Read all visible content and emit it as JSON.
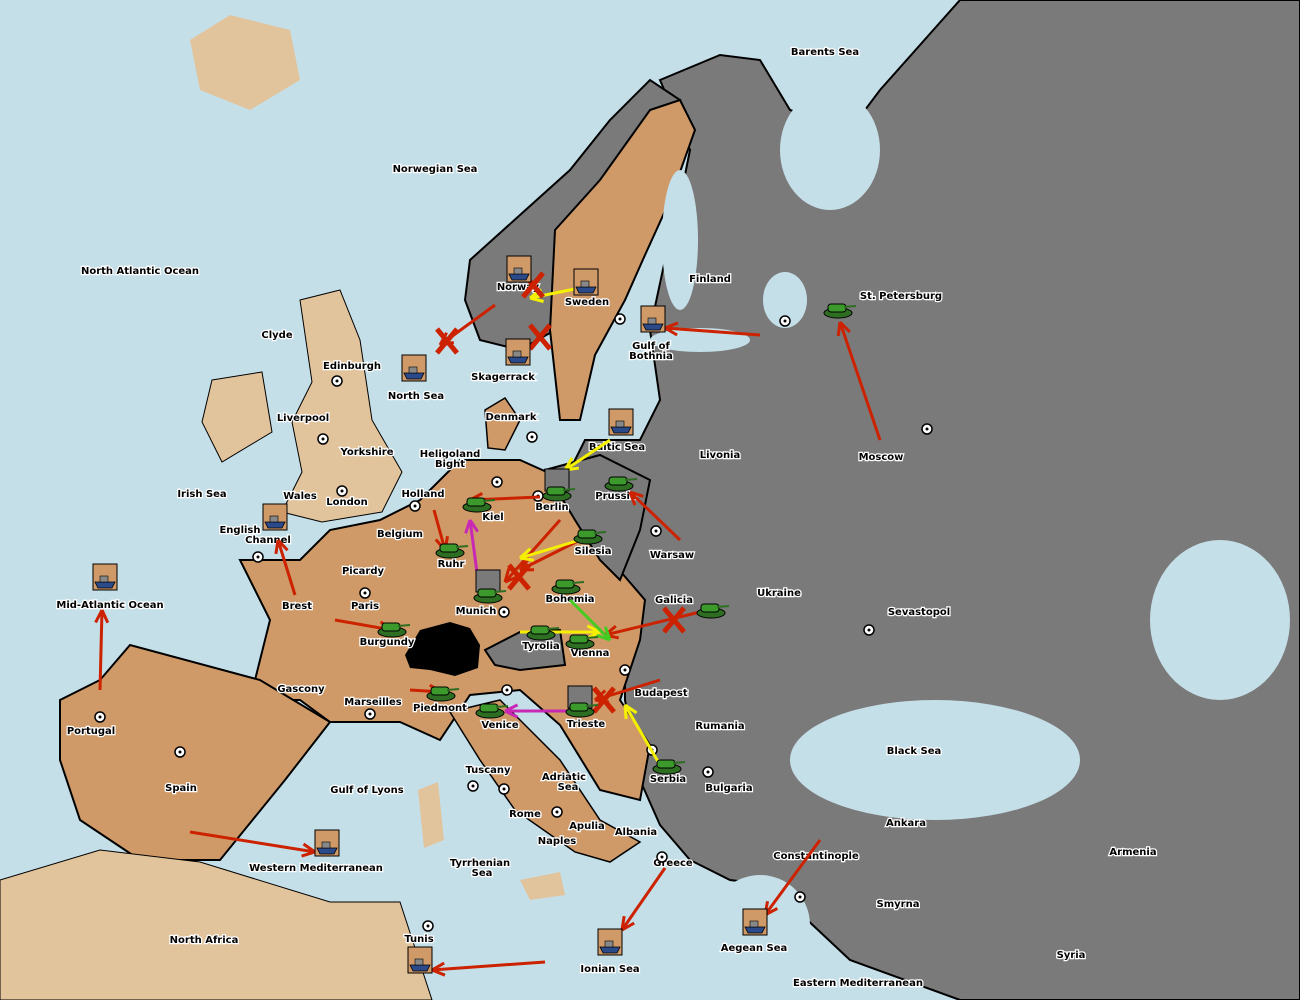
{
  "colors": {
    "sea": "#c5dfe9",
    "neutral_land": "#e2c49c",
    "player_land": "#cf9a68",
    "other_land": "#7a7a7a",
    "impassable": "#000000",
    "army": "#3c9a2c",
    "move_order": "#cc2200",
    "support_order": "#f5f000",
    "convoy_order": "#c828b4",
    "hold_support": "#44cc22"
  },
  "provinces": [
    "Barents Sea",
    "Norwegian Sea",
    "North Atlantic Ocean",
    "Clyde",
    "Edinburgh",
    "Liverpool",
    "Yorkshire",
    "Irish Sea",
    "Wales",
    "London",
    "English",
    "Channel",
    "Mid-Atlantic Ocean",
    "Brest",
    "Picardy",
    "Paris",
    "Belgium",
    "Holland",
    "Heligoland",
    "Bight",
    "Kiel",
    "Ruhr",
    "Berlin",
    "Prussia",
    "Silesia",
    "Warsaw",
    "Munich",
    "Bohemia",
    "Galicia",
    "Tyrolia",
    "Vienna",
    "Budapest",
    "Burgundy",
    "Gascony",
    "Marseilles",
    "Piedmont",
    "Venice",
    "Trieste",
    "Portugal",
    "Spain",
    "Gulf of Lyons",
    "Tuscany",
    "Adriatic",
    "Sea",
    "Rome",
    "Apulia",
    "Naples",
    "Albania",
    "Serbia",
    "Rumania",
    "Bulgaria",
    "Black Sea",
    "Sevastopol",
    "Ukraine",
    "Livonia",
    "Moscow",
    "St. Petersburg",
    "Finland",
    "Gulf of",
    "Bothnia",
    "Sweden",
    "Norway",
    "Skagerrack",
    "Denmark",
    "North Sea",
    "Baltic Sea",
    "Western Mediterranean",
    "North Africa",
    "Tunis",
    "Tyrrhenian",
    "Sea",
    "Ionian Sea",
    "Greece",
    "Aegean Sea",
    "Constantinople",
    "Ankara",
    "Smyrna",
    "Armenia",
    "Syria",
    "Eastern Mediterranean"
  ],
  "units": [
    {
      "type": "army",
      "province": "Kiel"
    },
    {
      "type": "army",
      "province": "Berlin"
    },
    {
      "type": "army",
      "province": "Prussia"
    },
    {
      "type": "army",
      "province": "Silesia"
    },
    {
      "type": "army",
      "province": "Ruhr"
    },
    {
      "type": "army",
      "province": "Munich"
    },
    {
      "type": "army",
      "province": "Bohemia"
    },
    {
      "type": "army",
      "province": "Galicia"
    },
    {
      "type": "army",
      "province": "Tyrolia"
    },
    {
      "type": "army",
      "province": "Vienna"
    },
    {
      "type": "army",
      "province": "Burgundy"
    },
    {
      "type": "army",
      "province": "Piedmont"
    },
    {
      "type": "army",
      "province": "Venice"
    },
    {
      "type": "army",
      "province": "Trieste"
    },
    {
      "type": "army",
      "province": "Serbia"
    },
    {
      "type": "army",
      "province": "St. Petersburg"
    },
    {
      "type": "fleet",
      "province": "Norway"
    },
    {
      "type": "fleet",
      "province": "Sweden"
    },
    {
      "type": "fleet",
      "province": "Gulf of Bothnia"
    },
    {
      "type": "fleet",
      "province": "Skagerrack"
    },
    {
      "type": "fleet",
      "province": "North Sea"
    },
    {
      "type": "fleet",
      "province": "Baltic Sea"
    },
    {
      "type": "fleet",
      "province": "English Channel"
    },
    {
      "type": "fleet",
      "province": "Mid-Atlantic Ocean"
    },
    {
      "type": "fleet",
      "province": "Western Mediterranean"
    },
    {
      "type": "fleet",
      "province": "Ionian Sea"
    },
    {
      "type": "fleet",
      "province": "Aegean Sea"
    },
    {
      "type": "fleet",
      "province": "Tunis"
    }
  ]
}
